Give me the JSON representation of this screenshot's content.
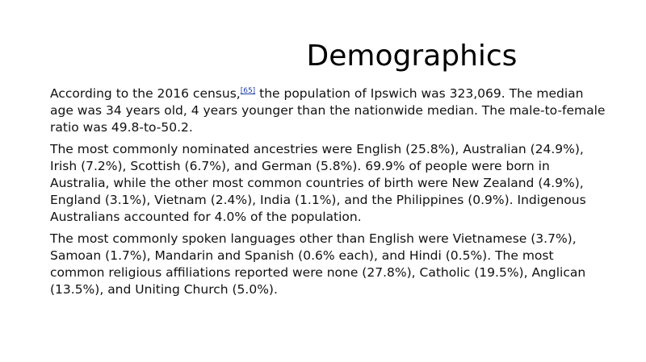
{
  "slide": {
    "title": "Demographics",
    "paragraph1": {
      "before_ref": "According to the 2016 census,",
      "ref": "[65]",
      "after_ref": " the population of Ipswich was 323,069. The median age was 34 years old, 4 years younger than the nationwide median. The male-to-female ratio was 49.8-to-50.2."
    },
    "paragraph2": "The most commonly nominated ancestries were English (25.8%), Australian (24.9%), Irish (7.2%), Scottish (6.7%), and German (5.8%). 69.9% of people were born in Australia, while the other most common countries of birth were New Zealand (4.9%), England (3.1%), Vietnam (2.4%), India (1.1%), and the Philippines (0.9%). Indigenous Australians accounted for 4.0% of the population.",
    "paragraph3": "The most commonly spoken languages other than English were Vietnamese (3.7%), Samoan (1.7%), Mandarin and Spanish (0.6% each), and Hindi (0.5%). The most common religious affiliations reported were none (27.8%), Catholic (19.5%), Anglican (13.5%), and Uniting Church (5.0%)."
  }
}
